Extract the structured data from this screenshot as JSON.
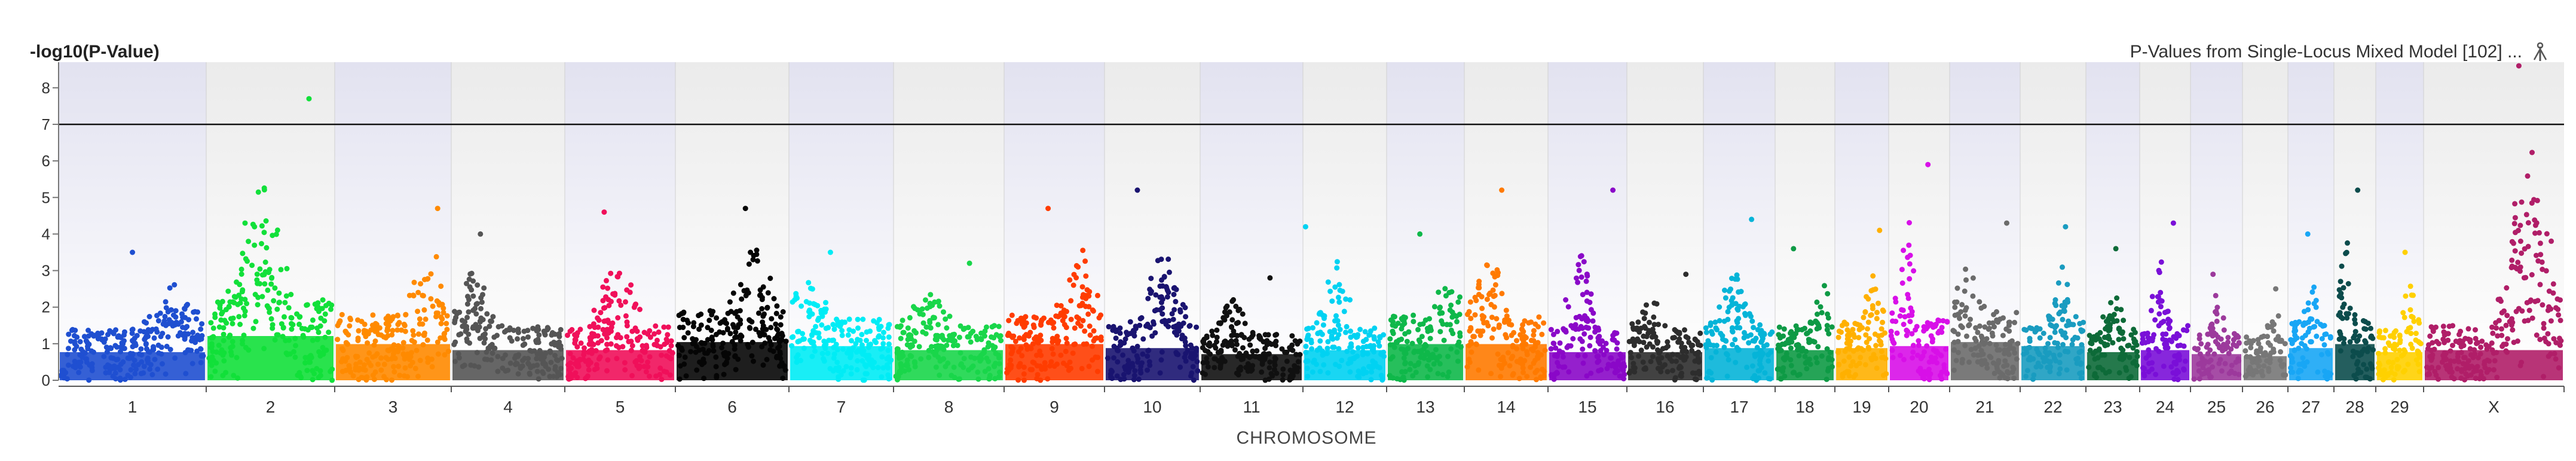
{
  "header": {
    "y_axis_title": "-log10(P-Value)",
    "chart_title": "P-Values from Single-Locus Mixed Model [102] ...",
    "toolbar_icon": "pin-icon"
  },
  "chart_data": {
    "type": "scatter",
    "title": "P-Values from Single-Locus Mixed Model [102] ...",
    "xlabel": "CHROMOSOME",
    "ylabel": "-log10(P-Value)",
    "ylim": [
      0,
      8.7
    ],
    "yticks": [
      "0",
      "1",
      "2",
      "3",
      "4",
      "5",
      "6",
      "7",
      "8"
    ],
    "significance_threshold": 7,
    "grid": false,
    "legend": "none",
    "categories": [
      "1",
      "2",
      "3",
      "4",
      "5",
      "6",
      "7",
      "8",
      "9",
      "10",
      "11",
      "12",
      "13",
      "14",
      "15",
      "16",
      "17",
      "18",
      "19",
      "20",
      "21",
      "22",
      "23",
      "24",
      "25",
      "26",
      "27",
      "28",
      "29",
      "X"
    ],
    "series": [
      {
        "chromosome": "1",
        "color": "#1f4fd0",
        "peak": 3.5,
        "base": 1.4
      },
      {
        "chromosome": "2",
        "color": "#12e03a",
        "peak": 7.7,
        "base": 2.2
      },
      {
        "chromosome": "3",
        "color": "#ff8a00",
        "peak": 4.7,
        "base": 1.8
      },
      {
        "chromosome": "4",
        "color": "#555555",
        "peak": 4.0,
        "base": 1.5
      },
      {
        "chromosome": "5",
        "color": "#f0105a",
        "peak": 4.6,
        "base": 1.5
      },
      {
        "chromosome": "6",
        "color": "#050505",
        "peak": 4.7,
        "base": 1.9
      },
      {
        "chromosome": "7",
        "color": "#00ecf5",
        "peak": 3.5,
        "base": 1.7
      },
      {
        "chromosome": "8",
        "color": "#19d64a",
        "peak": 3.2,
        "base": 1.5
      },
      {
        "chromosome": "9",
        "color": "#ff3c00",
        "peak": 4.7,
        "base": 1.8
      },
      {
        "chromosome": "10",
        "color": "#1a1470",
        "peak": 5.2,
        "base": 1.6
      },
      {
        "chromosome": "11",
        "color": "#111111",
        "peak": 2.8,
        "base": 1.3
      },
      {
        "chromosome": "12",
        "color": "#00d2f2",
        "peak": 4.2,
        "base": 1.5
      },
      {
        "chromosome": "13",
        "color": "#0fb84a",
        "peak": 4.0,
        "base": 1.8
      },
      {
        "chromosome": "14",
        "color": "#ff7a00",
        "peak": 5.2,
        "base": 1.8
      },
      {
        "chromosome": "15",
        "color": "#8a08c8",
        "peak": 5.2,
        "base": 1.4
      },
      {
        "chromosome": "16",
        "color": "#2d2d2d",
        "peak": 2.9,
        "base": 1.4
      },
      {
        "chromosome": "17",
        "color": "#05b4d8",
        "peak": 4.4,
        "base": 1.6
      },
      {
        "chromosome": "18",
        "color": "#0e9a45",
        "peak": 3.6,
        "base": 1.5
      },
      {
        "chromosome": "19",
        "color": "#ffb000",
        "peak": 4.1,
        "base": 1.6
      },
      {
        "chromosome": "20",
        "color": "#d810e8",
        "peak": 5.9,
        "base": 1.7
      },
      {
        "chromosome": "21",
        "color": "#6b6b6b",
        "peak": 4.3,
        "base": 1.9
      },
      {
        "chromosome": "22",
        "color": "#1a9cc0",
        "peak": 4.2,
        "base": 1.7
      },
      {
        "chromosome": "23",
        "color": "#0d6a38",
        "peak": 3.6,
        "base": 1.4
      },
      {
        "chromosome": "24",
        "color": "#7a10d8",
        "peak": 4.3,
        "base": 1.5
      },
      {
        "chromosome": "25",
        "color": "#9c3a9c",
        "peak": 2.9,
        "base": 1.3
      },
      {
        "chromosome": "26",
        "color": "#777777",
        "peak": 2.5,
        "base": 1.2
      },
      {
        "chromosome": "27",
        "color": "#18a6f5",
        "peak": 4.0,
        "base": 1.6
      },
      {
        "chromosome": "28",
        "color": "#0c4c4c",
        "peak": 5.2,
        "base": 1.8
      },
      {
        "chromosome": "29",
        "color": "#ffd000",
        "peak": 3.5,
        "base": 1.4
      },
      {
        "chromosome": "X",
        "color": "#b01e68",
        "peak": 8.6,
        "base": 1.5
      }
    ]
  }
}
